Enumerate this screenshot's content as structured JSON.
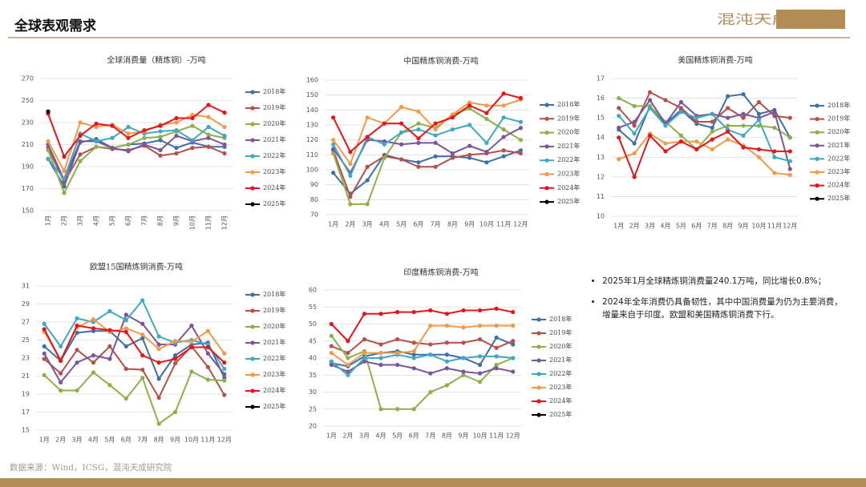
{
  "header": {
    "title": "全球表观需求",
    "logo": "混沌天成研究院"
  },
  "notes": [
    "2025年1月全球精炼铜消费量240.1万吨，同比增长0.8%；",
    "2024年全年消费仍具备韧性，其中中国消费量为仍为主要消费，增量来自于印度。欧盟和美国精炼铜消费下行。"
  ],
  "source": "数据来源：Wind，ICSG，混沌天成研究院",
  "chart_data": [
    {
      "type": "line",
      "title": "全球消费量（精炼铜）-万吨",
      "categories": [
        "1月",
        "2月",
        "3月",
        "4月",
        "5月",
        "6月",
        "7月",
        "8月",
        "9月",
        "10月",
        "11月",
        "12月"
      ],
      "ylim": [
        150,
        270
      ],
      "yticks": [
        150,
        170,
        190,
        210,
        230,
        250,
        270
      ],
      "grid": true,
      "series": [
        {
          "name": "2018年",
          "color": "#3d6fa8",
          "values": [
            197,
            172,
            212,
            215,
            207,
            210,
            211,
            214,
            207,
            212,
            208,
            208
          ]
        },
        {
          "name": "2019年",
          "color": "#b5504a",
          "values": [
            207,
            176,
            201,
            208,
            206,
            205,
            209,
            200,
            202,
            207,
            208,
            202
          ]
        },
        {
          "name": "2020年",
          "color": "#8db04a",
          "values": [
            205,
            166,
            195,
            208,
            207,
            210,
            216,
            217,
            222,
            227,
            219,
            216
          ]
        },
        {
          "name": "2021年",
          "color": "#7b559c",
          "values": [
            210,
            178,
            213,
            213,
            207,
            204,
            210,
            205,
            218,
            213,
            216,
            210
          ]
        },
        {
          "name": "2022年",
          "color": "#3fa8c4",
          "values": [
            197,
            179,
            220,
            213,
            216,
            226,
            220,
            222,
            223,
            214,
            226,
            218
          ]
        },
        {
          "name": "2023年",
          "color": "#f29a4a",
          "values": [
            213,
            186,
            230,
            226,
            228,
            220,
            222,
            228,
            230,
            237,
            235,
            226
          ]
        },
        {
          "name": "2024年",
          "color": "#e8141a",
          "values": [
            238,
            199,
            218,
            229,
            227,
            216,
            223,
            227,
            234,
            234,
            246,
            239
          ]
        },
        {
          "name": "2025年",
          "color": "#000000",
          "values": [
            240,
            null,
            null,
            null,
            null,
            null,
            null,
            null,
            null,
            null,
            null,
            null
          ]
        }
      ]
    },
    {
      "type": "line",
      "title": "中国精炼铜消费-万吨",
      "categories": [
        "1月",
        "2月",
        "3月",
        "4月",
        "5月",
        "6月",
        "7月",
        "8月",
        "9月",
        "10月",
        "11月",
        "12月"
      ],
      "ylim": [
        70,
        160
      ],
      "yticks": [
        70,
        80,
        90,
        100,
        110,
        120,
        130,
        140,
        150,
        160
      ],
      "grid": true,
      "series": [
        {
          "name": "2018年",
          "color": "#3d6fa8",
          "values": [
            98,
            84,
            93,
            110,
            107,
            105,
            109,
            109,
            108,
            105,
            109,
            113
          ]
        },
        {
          "name": "2019年",
          "color": "#b5504a",
          "values": [
            113,
            82,
            102,
            109,
            107,
            102,
            102,
            108,
            110,
            111,
            113,
            111
          ]
        },
        {
          "name": "2020年",
          "color": "#8db04a",
          "values": [
            111,
            77,
            77,
            108,
            125,
            131,
            128,
            137,
            141,
            134,
            127,
            120
          ]
        },
        {
          "name": "2021年",
          "color": "#7b559c",
          "values": [
            114,
            98,
            120,
            119,
            117,
            118,
            118,
            111,
            116,
            112,
            122,
            128
          ]
        },
        {
          "name": "2022年",
          "color": "#3fa8c4",
          "values": [
            117,
            96,
            122,
            117,
            125,
            127,
            123,
            127,
            130,
            118,
            135,
            132
          ]
        },
        {
          "name": "2023年",
          "color": "#f29a4a",
          "values": [
            120,
            104,
            135,
            131,
            142,
            139,
            127,
            137,
            145,
            143,
            143,
            147
          ]
        },
        {
          "name": "2024年",
          "color": "#e8141a",
          "values": [
            135,
            112,
            122,
            131,
            131,
            121,
            131,
            135,
            143,
            138,
            151,
            148
          ]
        },
        {
          "name": "2025年",
          "color": "#000000",
          "values": [
            null,
            null,
            null,
            null,
            null,
            null,
            null,
            null,
            null,
            null,
            null,
            null
          ]
        }
      ]
    },
    {
      "type": "line",
      "title": "美国精炼铜消费-万吨",
      "categories": [
        "1月",
        "2月",
        "3月",
        "4月",
        "5月",
        "6月",
        "7月",
        "8月",
        "9月",
        "10月",
        "11月",
        "12月"
      ],
      "ylim": [
        10,
        17
      ],
      "yticks": [
        10,
        11,
        12,
        13,
        14,
        15,
        16,
        17
      ],
      "grid": true,
      "series": [
        {
          "name": "2018年",
          "color": "#3d6fa8",
          "values": [
            14.4,
            13.7,
            15.6,
            14.7,
            15.4,
            14.7,
            14.5,
            16.1,
            16.2,
            15.2,
            15.4,
            14.0
          ]
        },
        {
          "name": "2019年",
          "color": "#b5504a",
          "values": [
            15.5,
            14.6,
            16.3,
            15.9,
            15.5,
            14.8,
            14.8,
            15.5,
            15.0,
            15.8,
            15.1,
            15.0
          ]
        },
        {
          "name": "2020年",
          "color": "#8db04a",
          "values": [
            16.0,
            15.6,
            15.6,
            14.8,
            14.1,
            13.4,
            14.3,
            14.6,
            14.6,
            14.6,
            14.5,
            14.0
          ]
        },
        {
          "name": "2021年",
          "color": "#7b559c",
          "values": [
            14.5,
            14.8,
            15.9,
            14.7,
            15.8,
            15.1,
            15.2,
            15.0,
            15.2,
            15.0,
            15.3,
            12.4
          ]
        },
        {
          "name": "2022年",
          "color": "#3fa8c4",
          "values": [
            15.1,
            14.2,
            15.5,
            14.6,
            15.3,
            15.0,
            15.2,
            14.4,
            14.1,
            14.9,
            13.0,
            12.8
          ]
        },
        {
          "name": "2023年",
          "color": "#f29a4a",
          "values": [
            12.9,
            13.2,
            14.2,
            13.7,
            13.8,
            13.8,
            13.4,
            13.9,
            13.6,
            13.0,
            12.2,
            12.1
          ]
        },
        {
          "name": "2024年",
          "color": "#e8141a",
          "values": [
            14.0,
            12.0,
            14.1,
            13.3,
            13.8,
            13.4,
            13.9,
            14.3,
            13.5,
            13.4,
            13.3,
            13.3
          ]
        },
        {
          "name": "2025年",
          "color": "#000000",
          "values": [
            null,
            null,
            null,
            null,
            null,
            null,
            null,
            null,
            null,
            null,
            null,
            null
          ]
        }
      ]
    },
    {
      "type": "line",
      "title": "欧盟15国精炼铜消费-万吨",
      "categories": [
        "1月",
        "2月",
        "3月",
        "4月",
        "5月",
        "6月",
        "7月",
        "8月",
        "9月",
        "10月",
        "11月",
        "12月"
      ],
      "ylim": [
        15,
        31
      ],
      "yticks": [
        15,
        17,
        19,
        21,
        23,
        25,
        27,
        29,
        31
      ],
      "grid": true,
      "series": [
        {
          "name": "2018年",
          "color": "#3d6fa8",
          "values": [
            24.3,
            22.7,
            25.8,
            26.0,
            26.0,
            24.3,
            25.2,
            20.7,
            23.3,
            24.5,
            24.7,
            20.8
          ]
        },
        {
          "name": "2019年",
          "color": "#b5504a",
          "values": [
            22.9,
            21.3,
            23.9,
            22.5,
            24.3,
            21.8,
            21.7,
            18.6,
            22.4,
            24.3,
            22.0,
            18.9
          ]
        },
        {
          "name": "2020年",
          "color": "#8db04a",
          "values": [
            21.1,
            19.4,
            19.4,
            21.4,
            20.0,
            18.5,
            20.8,
            15.7,
            17.0,
            21.5,
            20.6,
            20.5
          ]
        },
        {
          "name": "2021年",
          "color": "#7b559c",
          "values": [
            23.5,
            20.3,
            22.5,
            23.3,
            22.9,
            27.8,
            26.8,
            24.5,
            24.5,
            26.6,
            23.5,
            21.2
          ]
        },
        {
          "name": "2022年",
          "color": "#3fa8c4",
          "values": [
            26.8,
            24.3,
            27.4,
            27.0,
            28.2,
            27.2,
            29.4,
            25.4,
            24.7,
            25.0,
            24.5,
            21.8
          ]
        },
        {
          "name": "2023年",
          "color": "#f29a4a",
          "values": [
            25.9,
            22.8,
            26.4,
            27.3,
            25.9,
            26.3,
            25.6,
            24.0,
            24.9,
            24.8,
            26.0,
            23.5
          ]
        },
        {
          "name": "2024年",
          "color": "#e8141a",
          "values": [
            26.2,
            22.7,
            26.6,
            26.3,
            26.1,
            25.9,
            23.3,
            22.5,
            22.9,
            24.2,
            24.2,
            22.5
          ]
        },
        {
          "name": "2025年",
          "color": "#000000",
          "values": [
            null,
            null,
            null,
            null,
            null,
            null,
            null,
            null,
            null,
            null,
            null,
            null
          ]
        }
      ]
    },
    {
      "type": "line",
      "title": "印度精炼铜消费-万吨",
      "categories": [
        "1月",
        "2月",
        "3月",
        "4月",
        "5月",
        "6月",
        "7月",
        "8月",
        "9月",
        "10月",
        "11月",
        "12月"
      ],
      "ylim": [
        20,
        60
      ],
      "yticks": [
        20,
        25,
        30,
        35,
        40,
        45,
        50,
        55,
        60
      ],
      "grid": true,
      "series": [
        {
          "name": "2018年",
          "color": "#3d6fa8",
          "values": [
            38.5,
            37.6,
            40.5,
            41.5,
            42.0,
            41.0,
            41.0,
            41.0,
            40.0,
            38.0,
            46.0,
            44.0
          ]
        },
        {
          "name": "2019年",
          "color": "#b5504a",
          "values": [
            43.5,
            41.5,
            45.5,
            44.0,
            45.5,
            44.5,
            44.0,
            44.5,
            44.5,
            45.5,
            43.0,
            45.0
          ]
        },
        {
          "name": "2020年",
          "color": "#8db04a",
          "values": [
            46.5,
            40.0,
            42.0,
            25.0,
            25.0,
            25.0,
            30.0,
            32.0,
            35.0,
            33.0,
            38.0,
            40.0
          ]
        },
        {
          "name": "2021年",
          "color": "#7b559c",
          "values": [
            38.0,
            36.0,
            39.0,
            38.0,
            38.0,
            37.0,
            35.5,
            37.0,
            36.0,
            35.5,
            37.0,
            36.0
          ]
        },
        {
          "name": "2022年",
          "color": "#3fa8c4",
          "values": [
            39.0,
            35.0,
            40.0,
            40.0,
            41.0,
            40.0,
            41.0,
            39.0,
            40.0,
            40.5,
            40.5,
            40.0
          ]
        },
        {
          "name": "2023年",
          "color": "#f29a4a",
          "values": [
            41.5,
            38.0,
            41.5,
            41.5,
            41.5,
            42.0,
            49.5,
            49.5,
            49.0,
            49.5,
            49.5,
            49.5
          ]
        },
        {
          "name": "2024年",
          "color": "#e8141a",
          "values": [
            50.0,
            45.0,
            53.0,
            53.0,
            53.5,
            53.5,
            54.0,
            53.0,
            54.0,
            54.0,
            54.5,
            53.5
          ]
        },
        {
          "name": "2025年",
          "color": "#000000",
          "values": [
            null,
            null,
            null,
            null,
            null,
            null,
            null,
            null,
            null,
            null,
            null,
            null
          ]
        }
      ]
    }
  ]
}
